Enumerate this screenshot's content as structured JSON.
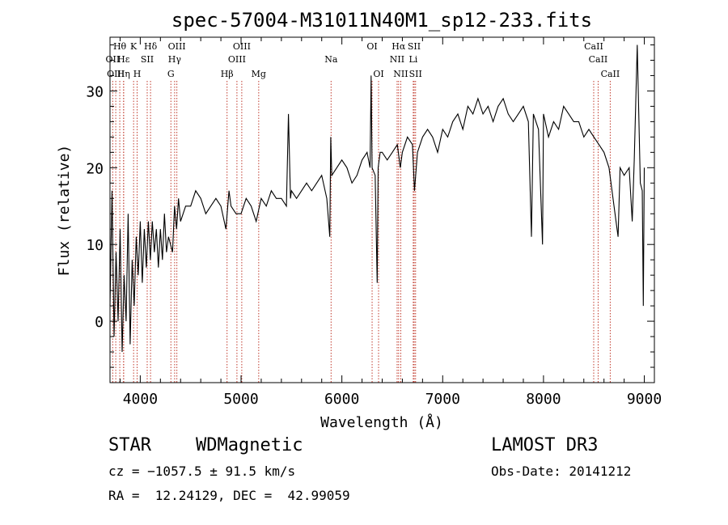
{
  "chart_data": {
    "type": "line",
    "title": "spec-57004-M31011N40M1_sp12-233.fits",
    "xlabel": "Wavelength (Å)",
    "ylabel": "Flux (relative)",
    "xlim": [
      3700,
      9100
    ],
    "ylim": [
      -8,
      37
    ],
    "xticks": [
      4000,
      5000,
      6000,
      7000,
      8000,
      9000
    ],
    "yticks": [
      0,
      10,
      20,
      30
    ],
    "grid": false,
    "series": [
      {
        "name": "flux",
        "x": [
          3700,
          3720,
          3740,
          3760,
          3780,
          3800,
          3820,
          3840,
          3860,
          3880,
          3900,
          3920,
          3940,
          3960,
          3980,
          4000,
          4020,
          4040,
          4060,
          4080,
          4100,
          4120,
          4140,
          4160,
          4180,
          4200,
          4220,
          4240,
          4260,
          4280,
          4300,
          4320,
          4340,
          4360,
          4380,
          4400,
          4450,
          4500,
          4550,
          4600,
          4650,
          4700,
          4750,
          4800,
          4850,
          4880,
          4900,
          4950,
          5000,
          5050,
          5100,
          5150,
          5200,
          5250,
          5300,
          5350,
          5400,
          5450,
          5470,
          5490,
          5500,
          5550,
          5600,
          5650,
          5700,
          5750,
          5800,
          5850,
          5880,
          5890,
          5900,
          5950,
          6000,
          6050,
          6100,
          6150,
          6200,
          6250,
          6280,
          6290,
          6300,
          6330,
          6350,
          6360,
          6380,
          6400,
          6450,
          6500,
          6550,
          6580,
          6600,
          6650,
          6700,
          6720,
          6750,
          6800,
          6850,
          6900,
          6950,
          7000,
          7050,
          7100,
          7150,
          7200,
          7250,
          7300,
          7350,
          7400,
          7450,
          7500,
          7550,
          7600,
          7650,
          7700,
          7750,
          7800,
          7850,
          7880,
          7900,
          7950,
          7990,
          8000,
          8050,
          8100,
          8150,
          8200,
          8250,
          8300,
          8350,
          8400,
          8450,
          8500,
          8550,
          8600,
          8650,
          8700,
          8740,
          8760,
          8800,
          8850,
          8880,
          8900,
          8930,
          8960,
          8980,
          8990,
          9000
        ],
        "values": [
          2,
          17,
          -2,
          9,
          0,
          12,
          -4,
          6,
          0,
          14,
          -3,
          8,
          2,
          11,
          6,
          13,
          5,
          12,
          7,
          13,
          8,
          13,
          9,
          12,
          7,
          12,
          8,
          14,
          9,
          11,
          10,
          9,
          15,
          12,
          16,
          13,
          15,
          15,
          17,
          16,
          14,
          15,
          16,
          15,
          12,
          17,
          15,
          14,
          14,
          16,
          15,
          13,
          16,
          15,
          17,
          16,
          16,
          15,
          27,
          16,
          17,
          16,
          17,
          18,
          17,
          18,
          19,
          16,
          11,
          24,
          19,
          20,
          21,
          20,
          18,
          19,
          21,
          22,
          20,
          32,
          20,
          19,
          5,
          20,
          22,
          22,
          21,
          22,
          23,
          20,
          22,
          24,
          23,
          17,
          22,
          24,
          25,
          24,
          22,
          25,
          24,
          26,
          27,
          25,
          28,
          27,
          29,
          27,
          28,
          26,
          28,
          29,
          27,
          26,
          27,
          28,
          26,
          11,
          27,
          25,
          10,
          27,
          24,
          26,
          25,
          28,
          27,
          26,
          26,
          24,
          25,
          24,
          23,
          22,
          20,
          15,
          11,
          20,
          19,
          20,
          13,
          21,
          36,
          18,
          17,
          2,
          20
        ]
      }
    ],
    "line_annotations": [
      {
        "label": "Hθ",
        "x": 3797,
        "row": 1
      },
      {
        "label": "OII",
        "x": 3727,
        "row": 2
      },
      {
        "label": "OIII",
        "x": 3757,
        "row": 3
      },
      {
        "label": "Hε",
        "x": 3835,
        "row": 2
      },
      {
        "label": "Hη",
        "x": 3835,
        "row": 3
      },
      {
        "label": "K",
        "x": 3934,
        "row": 1
      },
      {
        "label": "Hδ",
        "x": 4102,
        "row": 1
      },
      {
        "label": "SII",
        "x": 4069,
        "row": 2
      },
      {
        "label": "H",
        "x": 3969,
        "row": 3
      },
      {
        "label": "OIII",
        "x": 4363,
        "row": 1
      },
      {
        "label": "Hγ",
        "x": 4341,
        "row": 2
      },
      {
        "label": "G",
        "x": 4304,
        "row": 3
      },
      {
        "label": "OIII",
        "x": 5007,
        "row": 1
      },
      {
        "label": "OIII",
        "x": 4959,
        "row": 2
      },
      {
        "label": "Hβ",
        "x": 4861,
        "row": 3
      },
      {
        "label": "Mg",
        "x": 5175,
        "row": 3
      },
      {
        "label": "Na",
        "x": 5893,
        "row": 2
      },
      {
        "label": "OI",
        "x": 6300,
        "row": 1
      },
      {
        "label": "OI",
        "x": 6364,
        "row": 3
      },
      {
        "label": "Hα",
        "x": 6563,
        "row": 1
      },
      {
        "label": "SII",
        "x": 6717,
        "row": 1
      },
      {
        "label": "NII",
        "x": 6548,
        "row": 2
      },
      {
        "label": "Li",
        "x": 6708,
        "row": 2
      },
      {
        "label": "NII",
        "x": 6584,
        "row": 3
      },
      {
        "label": "SII",
        "x": 6731,
        "row": 3
      },
      {
        "label": "CaII",
        "x": 8498,
        "row": 1
      },
      {
        "label": "CaII",
        "x": 8542,
        "row": 2
      },
      {
        "label": "CaII",
        "x": 8662,
        "row": 3
      }
    ],
    "colors": {
      "spectrum": "#000000",
      "annotation_line": "#c0392b",
      "axes": "#000000"
    }
  },
  "info": {
    "class_label": "STAR",
    "subclass_label": "WDMagnetic",
    "survey": "LAMOST DR3",
    "cz_line": "cz = −1057.5 ± 91.5 km/s",
    "obs_date": "Obs-Date: 20141212",
    "radec_line": "RA =  12.24129, DEC =  42.99059"
  }
}
